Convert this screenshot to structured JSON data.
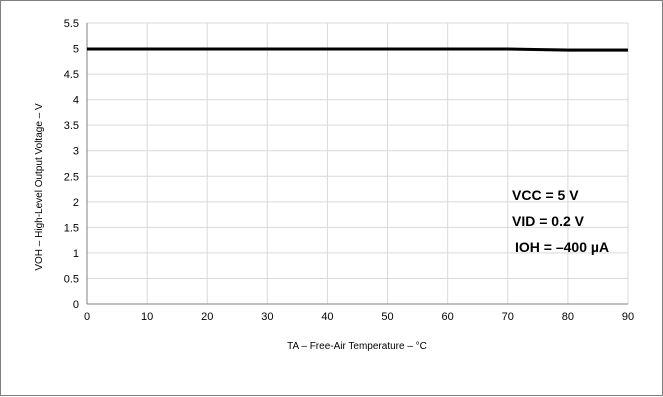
{
  "chart_data": {
    "type": "line",
    "xlabel": "TA – Free-Air Temperature – ",
    "xlabel_unit": "°C",
    "ylabel": "VOH – High-Level Output Voltage – V",
    "xlim": [
      0,
      90
    ],
    "ylim": [
      0,
      5.5
    ],
    "x_ticks": [
      "0",
      "10",
      "20",
      "30",
      "40",
      "50",
      "60",
      "70",
      "80",
      "90"
    ],
    "y_ticks": [
      "0",
      "0.5",
      "1",
      "1.5",
      "2",
      "2.5",
      "3",
      "3.5",
      "4",
      "4.5",
      "5",
      "5.5"
    ],
    "grid": true,
    "series": [
      {
        "x": [
          0,
          10,
          20,
          30,
          40,
          50,
          60,
          70,
          80,
          90
        ],
        "values": [
          4.99,
          4.99,
          4.99,
          4.99,
          4.99,
          4.99,
          4.99,
          4.99,
          4.97,
          4.97
        ],
        "color": "#000000"
      }
    ],
    "annotations": [
      "VCC = 5 V",
      "VID = 0.2 V",
      "IOH = –400 µA"
    ]
  }
}
